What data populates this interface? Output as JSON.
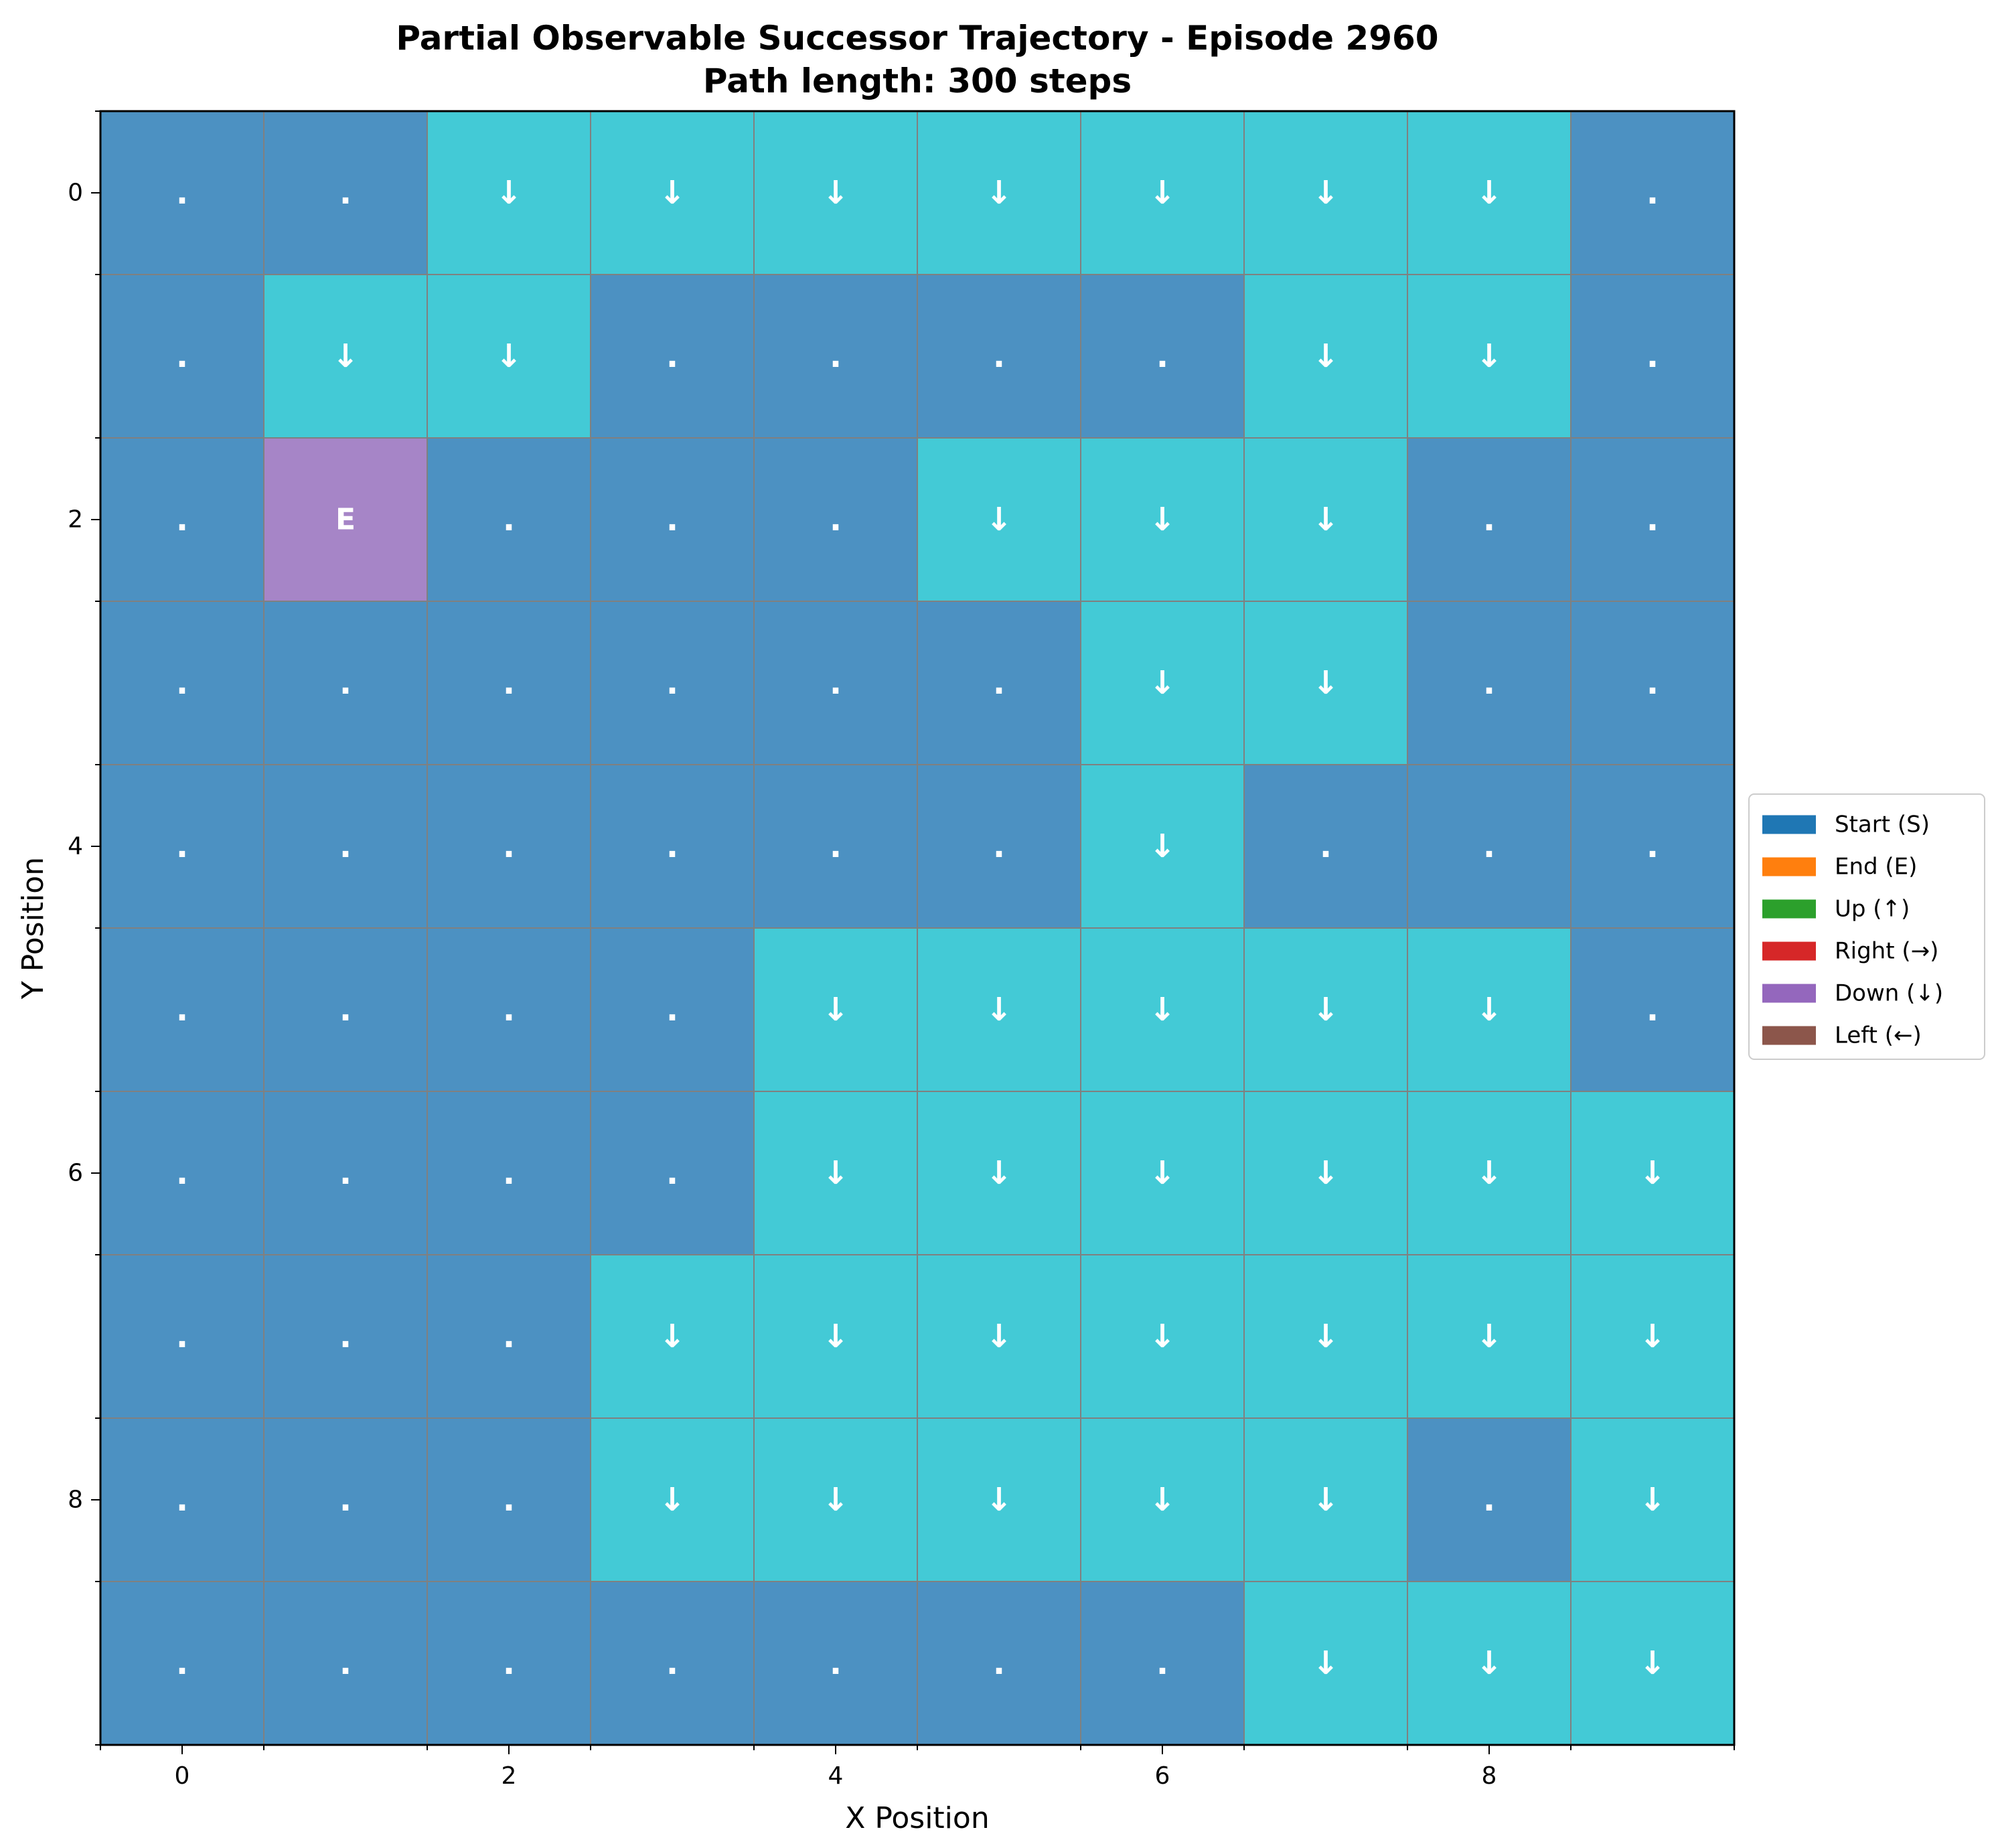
{
  "chart_data": {
    "type": "heatmap",
    "title": "Partial Observable Successor Trajectory - Episode 2960",
    "subtitle": "Path length: 300 steps",
    "xlabel": "X Position",
    "ylabel": "Y Position",
    "x_ticks": [
      "0",
      "2",
      "4",
      "6",
      "8"
    ],
    "y_ticks": [
      "0",
      "2",
      "4",
      "6",
      "8"
    ],
    "xlim": [
      -0.5,
      9.5
    ],
    "ylim": [
      9.5,
      -0.5
    ],
    "grid": true,
    "legend_position": "center-right",
    "colors": {
      "background_cell": "#4c91c2",
      "path_cell": "#43cad6",
      "end_cell": "#a685c7",
      "grid_line": "#808080",
      "cell_text": "#ffffff"
    },
    "legend": [
      {
        "label": "Start (S)",
        "color": "#1f77b4"
      },
      {
        "label": "End (E)",
        "color": "#ff7f0e"
      },
      {
        "label": "Up (↑)",
        "color": "#2ca02c"
      },
      {
        "label": "Right (→)",
        "color": "#d62728"
      },
      {
        "label": "Down (↓)",
        "color": "#9467bd"
      },
      {
        "label": "Left (←)",
        "color": "#8c564b"
      }
    ],
    "cell_types": [
      [
        0,
        0,
        1,
        1,
        1,
        1,
        1,
        1,
        1,
        0
      ],
      [
        0,
        1,
        1,
        0,
        0,
        0,
        0,
        1,
        1,
        0
      ],
      [
        0,
        2,
        0,
        0,
        0,
        1,
        1,
        1,
        0,
        0
      ],
      [
        0,
        0,
        0,
        0,
        0,
        0,
        1,
        1,
        0,
        0
      ],
      [
        0,
        0,
        0,
        0,
        0,
        0,
        1,
        0,
        0,
        0
      ],
      [
        0,
        0,
        0,
        0,
        1,
        1,
        1,
        1,
        1,
        0
      ],
      [
        0,
        0,
        0,
        0,
        1,
        1,
        1,
        1,
        1,
        1
      ],
      [
        0,
        0,
        0,
        1,
        1,
        1,
        1,
        1,
        1,
        1
      ],
      [
        0,
        0,
        0,
        1,
        1,
        1,
        1,
        1,
        0,
        1
      ],
      [
        0,
        0,
        0,
        0,
        0,
        0,
        0,
        1,
        1,
        1
      ]
    ],
    "cell_labels": [
      [
        ".",
        ".",
        "↓",
        "↓",
        "↓",
        "↓",
        "↓",
        "↓",
        "↓",
        "."
      ],
      [
        ".",
        "↓",
        "↓",
        ".",
        ".",
        ".",
        ".",
        "↓",
        "↓",
        "."
      ],
      [
        ".",
        "E",
        ".",
        ".",
        ".",
        "↓",
        "↓",
        "↓",
        ".",
        "."
      ],
      [
        ".",
        ".",
        ".",
        ".",
        ".",
        ".",
        "↓",
        "↓",
        ".",
        "."
      ],
      [
        ".",
        ".",
        ".",
        ".",
        ".",
        ".",
        "↓",
        ".",
        ".",
        "."
      ],
      [
        ".",
        ".",
        ".",
        ".",
        "↓",
        "↓",
        "↓",
        "↓",
        "↓",
        "."
      ],
      [
        ".",
        ".",
        ".",
        ".",
        "↓",
        "↓",
        "↓",
        "↓",
        "↓",
        "↓"
      ],
      [
        ".",
        ".",
        ".",
        "↓",
        "↓",
        "↓",
        "↓",
        "↓",
        "↓",
        "↓"
      ],
      [
        ".",
        ".",
        ".",
        "↓",
        "↓",
        "↓",
        "↓",
        "↓",
        ".",
        "↓"
      ],
      [
        ".",
        ".",
        ".",
        ".",
        ".",
        ".",
        ".",
        "↓",
        "↓",
        "↓"
      ]
    ]
  }
}
